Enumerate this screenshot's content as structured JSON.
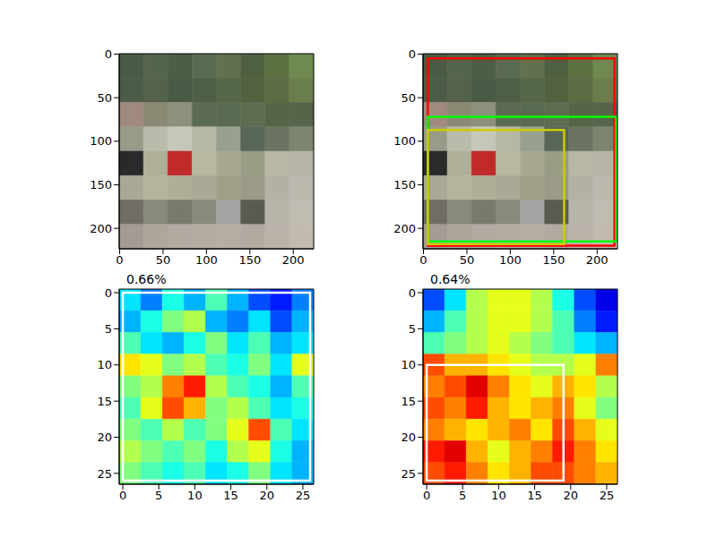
{
  "chart_data": [
    {
      "type": "image",
      "xlim": [
        -0.5,
        223.5
      ],
      "ylim": [
        223.5,
        -0.5
      ],
      "xticks": [
        0,
        50,
        100,
        150,
        200
      ],
      "yticks": [
        0,
        50,
        100,
        150,
        200
      ],
      "pixels": [
        [
          "#4a5a44",
          "#55654c",
          "#4e5e46",
          "#5a6a50",
          "#62704e",
          "#4e6040",
          "#5c7040",
          "#6f8a50"
        ],
        [
          "#4c5c46",
          "#536249",
          "#4a5a44",
          "#4e5e47",
          "#566648",
          "#52623f",
          "#5b6c45",
          "#6a7d4c"
        ],
        [
          "#a08a80",
          "#8a8a74",
          "#8e927c",
          "#5d6a52",
          "#5a6a50",
          "#5e6c52",
          "#566446",
          "#56644a"
        ],
        [
          "#9a9a88",
          "#b8bcaa",
          "#c4c8b6",
          "#b4b8a4",
          "#9aa090",
          "#58665a",
          "#6a7460",
          "#7d8470"
        ],
        [
          "#2a2a2a",
          "#b0b09a",
          "#c02a28",
          "#b8b8a2",
          "#a8a892",
          "#9a9c86",
          "#b8b8a4",
          "#b8b4a6"
        ],
        [
          "#a8a894",
          "#b4b49e",
          "#aeae98",
          "#a8a894",
          "#a0a08a",
          "#9a9a86",
          "#b4b0a6",
          "#bcb8ae"
        ],
        [
          "#706e64",
          "#8a8a7a",
          "#7a7a6c",
          "#8a8a7a",
          "#a4a4a4",
          "#5a5a52",
          "#b8b4aa",
          "#c0bcb2"
        ],
        [
          "#a49c94",
          "#aea69c",
          "#b2aaa0",
          "#b4aca2",
          "#b6aea4",
          "#b2aaa0",
          "#bab2a8",
          "#c2bab0"
        ]
      ],
      "boxes": []
    },
    {
      "type": "image",
      "xlim": [
        -0.5,
        223.5
      ],
      "ylim": [
        223.5,
        -0.5
      ],
      "xticks": [
        0,
        50,
        100,
        150,
        200
      ],
      "yticks": [
        0,
        50,
        100,
        150,
        200
      ],
      "pixels": [
        [
          "#4a5a44",
          "#55654c",
          "#4e5e46",
          "#5a6a50",
          "#62704e",
          "#4e6040",
          "#5c7040",
          "#6f8a50"
        ],
        [
          "#4c5c46",
          "#536249",
          "#4a5a44",
          "#4e5e47",
          "#566648",
          "#52623f",
          "#5b6c45",
          "#6a7d4c"
        ],
        [
          "#a08a80",
          "#8a8a74",
          "#8e927c",
          "#5d6a52",
          "#5a6a50",
          "#5e6c52",
          "#566446",
          "#56644a"
        ],
        [
          "#9a9a88",
          "#b8bcaa",
          "#c4c8b6",
          "#b4b8a4",
          "#9aa090",
          "#58665a",
          "#6a7460",
          "#7d8470"
        ],
        [
          "#2a2a2a",
          "#b0b09a",
          "#c02a28",
          "#b8b8a2",
          "#a8a892",
          "#9a9c86",
          "#b8b8a4",
          "#b8b4a6"
        ],
        [
          "#a8a894",
          "#b4b49e",
          "#aeae98",
          "#a8a894",
          "#a0a08a",
          "#9a9a86",
          "#b4b0a6",
          "#bcb8ae"
        ],
        [
          "#706e64",
          "#8a8a7a",
          "#7a7a6c",
          "#8a8a7a",
          "#a4a4a4",
          "#5a5a52",
          "#b8b4aa",
          "#c0bcb2"
        ],
        [
          "#a49c94",
          "#aea69c",
          "#b2aaa0",
          "#b4aca2",
          "#b6aea4",
          "#b2aaa0",
          "#bab2a8",
          "#c2bab0"
        ]
      ],
      "boxes": [
        {
          "x": [
            5,
            220
          ],
          "y": [
            5,
            220
          ],
          "color": "#ff0000"
        },
        {
          "x": [
            5,
            222
          ],
          "y": [
            72,
            215
          ],
          "color": "#00ff00"
        },
        {
          "x": [
            5,
            162
          ],
          "y": [
            87,
            218
          ],
          "color": "#cccc00"
        }
      ]
    },
    {
      "type": "heatmap",
      "title": "0.66%",
      "xlim": [
        -0.5,
        26.5
      ],
      "ylim": [
        26.5,
        -0.5
      ],
      "xticks": [
        0,
        5,
        10,
        15,
        20,
        25
      ],
      "yticks": [
        0,
        5,
        10,
        15,
        20,
        25
      ],
      "clim": [
        0,
        1
      ],
      "cells": [
        [
          0.35,
          0.25,
          0.4,
          0.3,
          0.45,
          0.3,
          0.2,
          0.15,
          0.25
        ],
        [
          0.3,
          0.4,
          0.5,
          0.55,
          0.3,
          0.25,
          0.35,
          0.2,
          0.3
        ],
        [
          0.45,
          0.35,
          0.3,
          0.4,
          0.5,
          0.35,
          0.45,
          0.3,
          0.35
        ],
        [
          0.65,
          0.6,
          0.5,
          0.55,
          0.45,
          0.4,
          0.5,
          0.35,
          0.6
        ],
        [
          0.5,
          0.55,
          0.75,
          0.85,
          0.55,
          0.45,
          0.4,
          0.3,
          0.45
        ],
        [
          0.45,
          0.6,
          0.8,
          0.7,
          0.5,
          0.55,
          0.45,
          0.35,
          0.4
        ],
        [
          0.5,
          0.45,
          0.55,
          0.45,
          0.5,
          0.6,
          0.8,
          0.45,
          0.35
        ],
        [
          0.55,
          0.5,
          0.45,
          0.5,
          0.4,
          0.55,
          0.6,
          0.4,
          0.3
        ],
        [
          0.5,
          0.45,
          0.4,
          0.45,
          0.35,
          0.4,
          0.5,
          0.35,
          0.3
        ]
      ],
      "boxes": [
        {
          "x": [
            0,
            26
          ],
          "y": [
            0,
            26
          ],
          "color": "#ffffff"
        }
      ]
    },
    {
      "type": "heatmap",
      "title": "0.64%",
      "xlim": [
        -0.5,
        26.5
      ],
      "ylim": [
        26.5,
        -0.5
      ],
      "xticks": [
        0,
        5,
        10,
        15,
        20,
        25
      ],
      "yticks": [
        0,
        5,
        10,
        15,
        20,
        25
      ],
      "clim": [
        0,
        1
      ],
      "cells": [
        [
          0.2,
          0.35,
          0.55,
          0.6,
          0.6,
          0.55,
          0.4,
          0.2,
          0.1
        ],
        [
          0.3,
          0.45,
          0.55,
          0.6,
          0.6,
          0.55,
          0.45,
          0.25,
          0.15
        ],
        [
          0.45,
          0.5,
          0.55,
          0.6,
          0.55,
          0.5,
          0.45,
          0.35,
          0.3
        ],
        [
          0.8,
          0.7,
          0.7,
          0.65,
          0.6,
          0.55,
          0.55,
          0.6,
          0.75
        ],
        [
          0.75,
          0.8,
          0.9,
          0.75,
          0.65,
          0.6,
          0.7,
          0.65,
          0.55
        ],
        [
          0.8,
          0.75,
          0.85,
          0.7,
          0.65,
          0.7,
          0.75,
          0.6,
          0.5
        ],
        [
          0.75,
          0.7,
          0.65,
          0.7,
          0.75,
          0.65,
          0.8,
          0.7,
          0.6
        ],
        [
          0.85,
          0.9,
          0.7,
          0.6,
          0.7,
          0.75,
          0.85,
          0.75,
          0.65
        ],
        [
          0.8,
          0.85,
          0.75,
          0.65,
          0.7,
          0.8,
          0.8,
          0.75,
          0.7
        ]
      ],
      "boxes": [
        {
          "x": [
            0,
            19
          ],
          "y": [
            10,
            26
          ],
          "color": "#ffffff"
        }
      ]
    }
  ]
}
